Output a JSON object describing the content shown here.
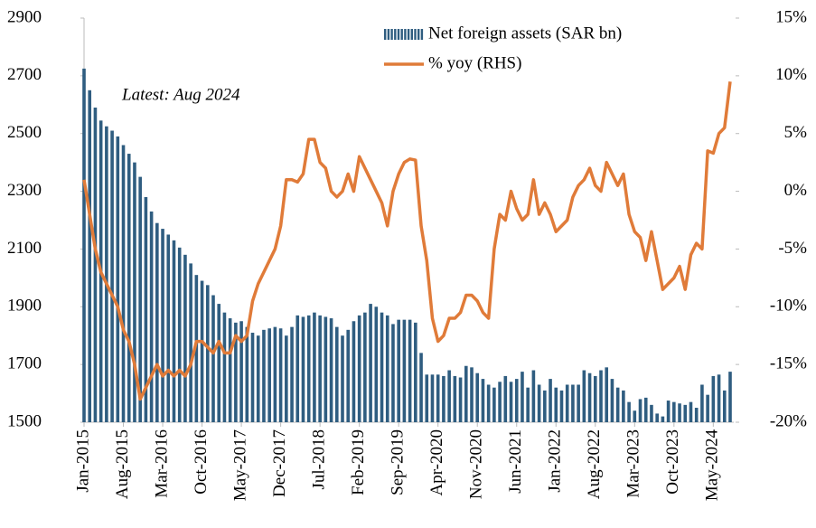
{
  "chart_data": {
    "type": "bar",
    "annotation": "Latest: Aug 2024",
    "categories": [
      "Jan-2015",
      null,
      null,
      null,
      null,
      null,
      null,
      "Aug-2015",
      null,
      null,
      null,
      null,
      null,
      null,
      "Mar-2016",
      null,
      null,
      null,
      null,
      null,
      null,
      "Oct-2016",
      null,
      null,
      null,
      null,
      null,
      null,
      "May-2017",
      null,
      null,
      null,
      null,
      null,
      null,
      "Dec-2017",
      null,
      null,
      null,
      null,
      null,
      null,
      "Jul-2018",
      null,
      null,
      null,
      null,
      null,
      null,
      "Feb-2019",
      null,
      null,
      null,
      null,
      null,
      null,
      "Sep-2019",
      null,
      null,
      null,
      null,
      null,
      null,
      "Apr-2020",
      null,
      null,
      null,
      null,
      null,
      null,
      "Nov-2020",
      null,
      null,
      null,
      null,
      null,
      null,
      "Jun-2021",
      null,
      null,
      null,
      null,
      null,
      null,
      "Jan-2022",
      null,
      null,
      null,
      null,
      null,
      null,
      "Aug-2022",
      null,
      null,
      null,
      null,
      null,
      null,
      "Mar-2023",
      null,
      null,
      null,
      null,
      null,
      null,
      "Oct-2023",
      null,
      null,
      null,
      null,
      null,
      null,
      "May-2024",
      null,
      null,
      null
    ],
    "series": [
      {
        "name": "Net foreign assets (SAR bn)",
        "type": "bar",
        "color": "#2f5d80",
        "values": [
          2725,
          2650,
          2590,
          2545,
          2525,
          2510,
          2490,
          2460,
          2430,
          2400,
          2350,
          2280,
          2230,
          2190,
          2170,
          2150,
          2130,
          2105,
          2080,
          2050,
          2010,
          1990,
          1975,
          1940,
          1910,
          1880,
          1860,
          1845,
          1850,
          1830,
          1810,
          1800,
          1820,
          1825,
          1830,
          1825,
          1800,
          1830,
          1870,
          1865,
          1870,
          1880,
          1870,
          1865,
          1860,
          1830,
          1800,
          1820,
          1850,
          1870,
          1880,
          1910,
          1900,
          1880,
          1870,
          1840,
          1855,
          1855,
          1855,
          1845,
          1740,
          1665,
          1665,
          1665,
          1660,
          1680,
          1660,
          1655,
          1695,
          1690,
          1670,
          1650,
          1630,
          1620,
          1640,
          1660,
          1640,
          1650,
          1675,
          1620,
          1680,
          1630,
          1610,
          1650,
          1620,
          1610,
          1630,
          1630,
          1630,
          1680,
          1670,
          1660,
          1680,
          1690,
          1650,
          1620,
          1610,
          1570,
          1540,
          1580,
          1585,
          1560,
          1530,
          1520,
          1575,
          1570,
          1565,
          1560,
          1570,
          1550,
          1630,
          1595,
          1660,
          1665,
          1610,
          1675
        ]
      },
      {
        "name": "% yoy (RHS)",
        "type": "line",
        "axis": "y2",
        "color": "#e07b39",
        "values": [
          1,
          -2,
          -5,
          -7,
          -8,
          -9,
          -10,
          -12,
          -13,
          -15,
          -18,
          -17,
          -16,
          -15,
          -16,
          -15.5,
          -16,
          -15.5,
          -16,
          -15,
          -13,
          -13,
          -13.5,
          -14,
          -13,
          -14,
          -14,
          -12.5,
          -13,
          -12.5,
          -9.5,
          -8,
          -7,
          -6,
          -5,
          -3,
          1,
          1,
          0.8,
          1.5,
          4.5,
          4.5,
          2.5,
          2,
          0,
          -0.5,
          0,
          1.5,
          0,
          3,
          2,
          1,
          0,
          -1,
          -3,
          0,
          1.5,
          2.5,
          2.8,
          2.7,
          -3,
          -6,
          -11,
          -13,
          -12.5,
          -11,
          -11,
          -10.5,
          -9,
          -9,
          -9.5,
          -10.5,
          -11,
          -5,
          -2,
          -2.5,
          0,
          -1.5,
          -2.5,
          -2,
          1,
          -2,
          -1,
          -2,
          -3.5,
          -3,
          -2.5,
          -0.5,
          0.5,
          1,
          2,
          0.5,
          0,
          2.5,
          1.5,
          0.5,
          1.5,
          -2,
          -3.5,
          -4,
          -6,
          -3.5,
          -6,
          -8.5,
          -8,
          -7.5,
          -6.5,
          -8.5,
          -5.5,
          -4.5,
          -5,
          3.5,
          3.3,
          5,
          5.5,
          9.5
        ]
      }
    ],
    "ylim": [
      1500,
      2900
    ],
    "yticks": [
      1500,
      1700,
      1900,
      2100,
      2300,
      2500,
      2700,
      2900
    ],
    "y2lim": [
      -20,
      15
    ],
    "y2ticks": [
      {
        "value": -20,
        "label": "-20%"
      },
      {
        "value": -15,
        "label": "-15%"
      },
      {
        "value": -10,
        "label": "-10%"
      },
      {
        "value": -5,
        "label": "-5%"
      },
      {
        "value": 0,
        "label": "0%"
      },
      {
        "value": 5,
        "label": "5%"
      },
      {
        "value": 10,
        "label": "10%"
      },
      {
        "value": 15,
        "label": "15%"
      }
    ],
    "legend": "top"
  }
}
